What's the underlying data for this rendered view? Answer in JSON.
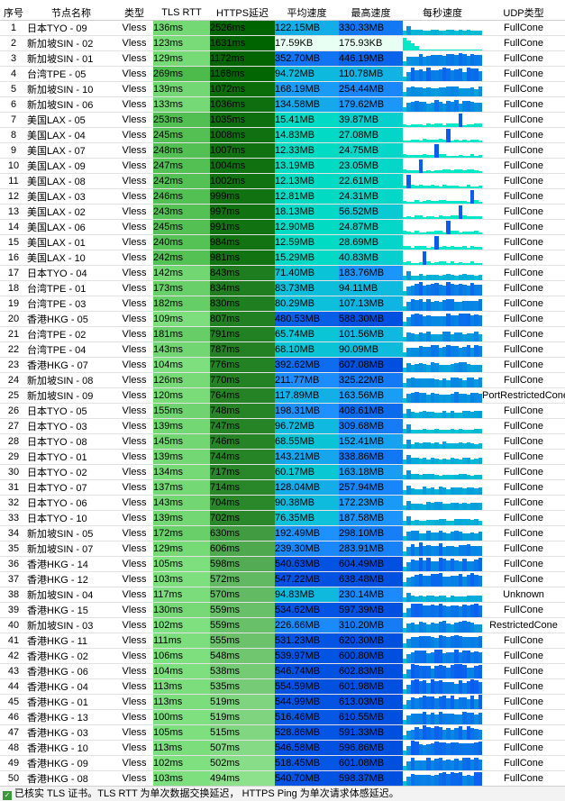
{
  "header": {
    "index": "序号",
    "name": "节点名称",
    "type": "类型",
    "tls_rtt": "TLS RTT",
    "https_latency": "HTTPS延迟",
    "avg_speed": "平均速度",
    "max_speed": "最高速度",
    "per_second": "每秒速度",
    "udp": "UDP类型"
  },
  "rows": [
    {
      "idx": "1",
      "name": "日本TYO - 09",
      "type": "Vless",
      "tls": "136ms",
      "https": "2526ms",
      "avg": "122.15MB",
      "max": "330.33MB",
      "udp": "FullCone"
    },
    {
      "idx": "2",
      "name": "新加坡SIN - 02",
      "type": "Vless",
      "tls": "123ms",
      "https": "1631ms",
      "avg": "17.59KB",
      "max": "175.93KB",
      "udp": "FullCone"
    },
    {
      "idx": "3",
      "name": "新加坡SIN - 01",
      "type": "Vless",
      "tls": "129ms",
      "https": "1172ms",
      "avg": "352.70MB",
      "max": "446.19MB",
      "udp": "FullCone"
    },
    {
      "idx": "4",
      "name": "台湾TPE - 05",
      "type": "Vless",
      "tls": "269ms",
      "https": "1168ms",
      "avg": "94.72MB",
      "max": "110.78MB",
      "udp": "FullCone"
    },
    {
      "idx": "5",
      "name": "新加坡SIN - 10",
      "type": "Vless",
      "tls": "139ms",
      "https": "1072ms",
      "avg": "168.19MB",
      "max": "254.44MB",
      "udp": "FullCone"
    },
    {
      "idx": "6",
      "name": "新加坡SIN - 06",
      "type": "Vless",
      "tls": "133ms",
      "https": "1036ms",
      "avg": "134.58MB",
      "max": "179.62MB",
      "udp": "FullCone"
    },
    {
      "idx": "7",
      "name": "美国LAX - 05",
      "type": "Vless",
      "tls": "253ms",
      "https": "1035ms",
      "avg": "15.41MB",
      "max": "39.87MB",
      "udp": "FullCone"
    },
    {
      "idx": "8",
      "name": "美国LAX - 04",
      "type": "Vless",
      "tls": "245ms",
      "https": "1008ms",
      "avg": "14.83MB",
      "max": "27.08MB",
      "udp": "FullCone"
    },
    {
      "idx": "9",
      "name": "美国LAX - 07",
      "type": "Vless",
      "tls": "248ms",
      "https": "1007ms",
      "avg": "12.33MB",
      "max": "24.75MB",
      "udp": "FullCone"
    },
    {
      "idx": "10",
      "name": "美国LAX - 09",
      "type": "Vless",
      "tls": "247ms",
      "https": "1004ms",
      "avg": "13.19MB",
      "max": "23.05MB",
      "udp": "FullCone"
    },
    {
      "idx": "11",
      "name": "美国LAX - 08",
      "type": "Vless",
      "tls": "242ms",
      "https": "1002ms",
      "avg": "12.13MB",
      "max": "22.61MB",
      "udp": "FullCone"
    },
    {
      "idx": "12",
      "name": "美国LAX - 03",
      "type": "Vless",
      "tls": "246ms",
      "https": "999ms",
      "avg": "12.81MB",
      "max": "24.31MB",
      "udp": "FullCone"
    },
    {
      "idx": "13",
      "name": "美国LAX - 02",
      "type": "Vless",
      "tls": "243ms",
      "https": "997ms",
      "avg": "18.13MB",
      "max": "56.52MB",
      "udp": "FullCone"
    },
    {
      "idx": "14",
      "name": "美国LAX - 06",
      "type": "Vless",
      "tls": "245ms",
      "https": "991ms",
      "avg": "12.90MB",
      "max": "24.87MB",
      "udp": "FullCone"
    },
    {
      "idx": "15",
      "name": "美国LAX - 01",
      "type": "Vless",
      "tls": "240ms",
      "https": "984ms",
      "avg": "12.59MB",
      "max": "28.69MB",
      "udp": "FullCone"
    },
    {
      "idx": "16",
      "name": "美国LAX - 10",
      "type": "Vless",
      "tls": "242ms",
      "https": "981ms",
      "avg": "15.29MB",
      "max": "40.83MB",
      "udp": "FullCone"
    },
    {
      "idx": "17",
      "name": "日本TYO - 04",
      "type": "Vless",
      "tls": "142ms",
      "https": "843ms",
      "avg": "71.40MB",
      "max": "183.76MB",
      "udp": "FullCone"
    },
    {
      "idx": "18",
      "name": "台湾TPE - 01",
      "type": "Vless",
      "tls": "173ms",
      "https": "834ms",
      "avg": "83.73MB",
      "max": "94.11MB",
      "udp": "FullCone"
    },
    {
      "idx": "19",
      "name": "台湾TPE - 03",
      "type": "Vless",
      "tls": "182ms",
      "https": "830ms",
      "avg": "80.29MB",
      "max": "107.13MB",
      "udp": "FullCone"
    },
    {
      "idx": "20",
      "name": "香港HKG - 05",
      "type": "Vless",
      "tls": "109ms",
      "https": "807ms",
      "avg": "480.53MB",
      "max": "588.30MB",
      "udp": "FullCone"
    },
    {
      "idx": "21",
      "name": "台湾TPE - 02",
      "type": "Vless",
      "tls": "181ms",
      "https": "791ms",
      "avg": "65.74MB",
      "max": "101.56MB",
      "udp": "FullCone"
    },
    {
      "idx": "22",
      "name": "台湾TPE - 04",
      "type": "Vless",
      "tls": "143ms",
      "https": "787ms",
      "avg": "68.10MB",
      "max": "90.09MB",
      "udp": "FullCone"
    },
    {
      "idx": "23",
      "name": "香港HKG - 07",
      "type": "Vless",
      "tls": "104ms",
      "https": "776ms",
      "avg": "392.62MB",
      "max": "607.08MB",
      "udp": "FullCone"
    },
    {
      "idx": "24",
      "name": "新加坡SIN - 08",
      "type": "Vless",
      "tls": "126ms",
      "https": "770ms",
      "avg": "211.77MB",
      "max": "325.22MB",
      "udp": "FullCone"
    },
    {
      "idx": "25",
      "name": "新加坡SIN - 09",
      "type": "Vless",
      "tls": "120ms",
      "https": "764ms",
      "avg": "117.89MB",
      "max": "163.56MB",
      "udp": "PortRestrictedCone"
    },
    {
      "idx": "26",
      "name": "日本TYO - 05",
      "type": "Vless",
      "tls": "155ms",
      "https": "748ms",
      "avg": "198.31MB",
      "max": "408.61MB",
      "udp": "FullCone"
    },
    {
      "idx": "27",
      "name": "日本TYO - 03",
      "type": "Vless",
      "tls": "139ms",
      "https": "747ms",
      "avg": "96.72MB",
      "max": "309.68MB",
      "udp": "FullCone"
    },
    {
      "idx": "28",
      "name": "日本TYO - 08",
      "type": "Vless",
      "tls": "145ms",
      "https": "746ms",
      "avg": "68.55MB",
      "max": "152.41MB",
      "udp": "FullCone"
    },
    {
      "idx": "29",
      "name": "日本TYO - 01",
      "type": "Vless",
      "tls": "139ms",
      "https": "744ms",
      "avg": "143.21MB",
      "max": "338.86MB",
      "udp": "FullCone"
    },
    {
      "idx": "30",
      "name": "日本TYO - 02",
      "type": "Vless",
      "tls": "134ms",
      "https": "717ms",
      "avg": "60.17MB",
      "max": "163.18MB",
      "udp": "FullCone"
    },
    {
      "idx": "31",
      "name": "日本TYO - 07",
      "type": "Vless",
      "tls": "137ms",
      "https": "714ms",
      "avg": "128.04MB",
      "max": "257.94MB",
      "udp": "FullCone"
    },
    {
      "idx": "32",
      "name": "日本TYO - 06",
      "type": "Vless",
      "tls": "143ms",
      "https": "704ms",
      "avg": "90.38MB",
      "max": "172.23MB",
      "udp": "FullCone"
    },
    {
      "idx": "33",
      "name": "日本TYO - 10",
      "type": "Vless",
      "tls": "139ms",
      "https": "702ms",
      "avg": "76.35MB",
      "max": "187.58MB",
      "udp": "FullCone"
    },
    {
      "idx": "34",
      "name": "新加坡SIN - 05",
      "type": "Vless",
      "tls": "172ms",
      "https": "630ms",
      "avg": "192.49MB",
      "max": "298.10MB",
      "udp": "FullCone"
    },
    {
      "idx": "35",
      "name": "新加坡SIN - 07",
      "type": "Vless",
      "tls": "129ms",
      "https": "606ms",
      "avg": "239.30MB",
      "max": "283.91MB",
      "udp": "FullCone"
    },
    {
      "idx": "36",
      "name": "香港HKG - 14",
      "type": "Vless",
      "tls": "105ms",
      "https": "598ms",
      "avg": "540.63MB",
      "max": "604.49MB",
      "udp": "FullCone"
    },
    {
      "idx": "37",
      "name": "香港HKG - 12",
      "type": "Vless",
      "tls": "103ms",
      "https": "572ms",
      "avg": "547.22MB",
      "max": "638.48MB",
      "udp": "FullCone"
    },
    {
      "idx": "38",
      "name": "新加坡SIN - 04",
      "type": "Vless",
      "tls": "117ms",
      "https": "570ms",
      "avg": "94.83MB",
      "max": "230.14MB",
      "udp": "Unknown"
    },
    {
      "idx": "39",
      "name": "香港HKG - 15",
      "type": "Vless",
      "tls": "130ms",
      "https": "559ms",
      "avg": "534.62MB",
      "max": "597.39MB",
      "udp": "FullCone"
    },
    {
      "idx": "40",
      "name": "新加坡SIN - 03",
      "type": "Vless",
      "tls": "102ms",
      "https": "559ms",
      "avg": "226.66MB",
      "max": "310.20MB",
      "udp": "RestrictedCone"
    },
    {
      "idx": "41",
      "name": "香港HKG - 11",
      "type": "Vless",
      "tls": "111ms",
      "https": "555ms",
      "avg": "531.23MB",
      "max": "620.30MB",
      "udp": "FullCone"
    },
    {
      "idx": "42",
      "name": "香港HKG - 02",
      "type": "Vless",
      "tls": "106ms",
      "https": "548ms",
      "avg": "539.97MB",
      "max": "600.80MB",
      "udp": "FullCone"
    },
    {
      "idx": "43",
      "name": "香港HKG - 06",
      "type": "Vless",
      "tls": "104ms",
      "https": "538ms",
      "avg": "546.74MB",
      "max": "602.83MB",
      "udp": "FullCone"
    },
    {
      "idx": "44",
      "name": "香港HKG - 04",
      "type": "Vless",
      "tls": "113ms",
      "https": "535ms",
      "avg": "554.59MB",
      "max": "601.98MB",
      "udp": "FullCone"
    },
    {
      "idx": "45",
      "name": "香港HKG - 01",
      "type": "Vless",
      "tls": "113ms",
      "https": "519ms",
      "avg": "544.99MB",
      "max": "613.03MB",
      "udp": "FullCone"
    },
    {
      "idx": "46",
      "name": "香港HKG - 13",
      "type": "Vless",
      "tls": "100ms",
      "https": "519ms",
      "avg": "516.46MB",
      "max": "610.55MB",
      "udp": "FullCone"
    },
    {
      "idx": "47",
      "name": "香港HKG - 03",
      "type": "Vless",
      "tls": "105ms",
      "https": "515ms",
      "avg": "528.86MB",
      "max": "591.33MB",
      "udp": "FullCone"
    },
    {
      "idx": "48",
      "name": "香港HKG - 10",
      "type": "Vless",
      "tls": "113ms",
      "https": "507ms",
      "avg": "546.58MB",
      "max": "596.86MB",
      "udp": "FullCone"
    },
    {
      "idx": "49",
      "name": "香港HKG - 09",
      "type": "Vless",
      "tls": "102ms",
      "https": "502ms",
      "avg": "518.45MB",
      "max": "601.08MB",
      "udp": "FullCone"
    },
    {
      "idx": "50",
      "name": "香港HKG - 08",
      "type": "Vless",
      "tls": "103ms",
      "https": "494ms",
      "avg": "540.70MB",
      "max": "598.37MB",
      "udp": "FullCone"
    }
  ],
  "footer": {
    "text": "已核实 TLS 证书。TLS RTT 为单次数据交换延迟， HTTPS Ping 为单次请求体感延迟。"
  },
  "colors": {
    "tls_light": "#7fe07f",
    "tls_mid": "#4cbb4c",
    "https_dark": "#006400",
    "https_mid": "#2d8a2d",
    "speed_light": "#00e0c0",
    "speed_mid": "#1e90ff",
    "speed_dark": "#0050e0",
    "spark_high": "#0a5cf0",
    "spark_low": "#00e8c8"
  }
}
